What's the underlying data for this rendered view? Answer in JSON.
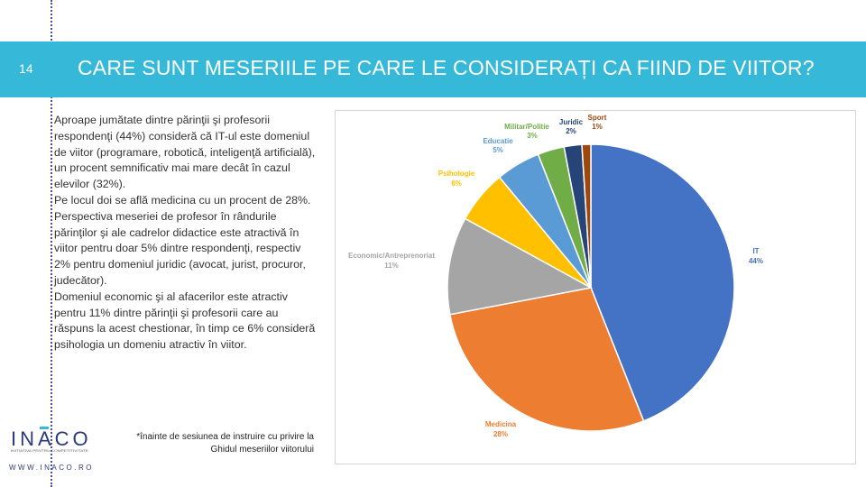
{
  "slide": {
    "number": "14",
    "title": "CARE SUNT MESERIILE PE CARE LE CONSIDERAȚI CA FIIND DE VIITOR?"
  },
  "body": {
    "paragraphs": [
      "Aproape jumătate dintre părinţii şi profesorii respondenţi (44%) consideră că IT-ul este domeniul de viitor (programare, robotică, inteligenţă artificială), un procent semnificativ mai mare decât în cazul elevilor (32%).",
      "Pe locul doi se află medicina cu un procent de 28%.",
      "Perspectiva meseriei de profesor în rândurile părinţilor şi ale cadrelor didactice este atractivă în viitor pentru doar 5% dintre respondenţi, respectiv 2% pentru domeniul juridic (avocat, jurist, procuror, judecător).",
      "Domeniul economic şi al afacerilor este atractiv pentru 11% dintre părinţii şi profesorii care au răspuns la acest chestionar, în timp ce 6% consideră psihologia un domeniu atractiv în viitor."
    ],
    "footnote": "*înainte de sesiunea de instruire cu privire la Ghidul meseriilor viitorului"
  },
  "logo": {
    "name": "INACO",
    "tagline": "INITIATIVA PENTRU COMPETITIVITATE",
    "website": "WWW.INACO.RO"
  },
  "chart_data": {
    "type": "pie",
    "title": "",
    "slices": [
      {
        "label": "IT",
        "value": 44,
        "text": "44%",
        "color": "#4472c4"
      },
      {
        "label": "Medicina",
        "value": 28,
        "text": "28%",
        "color": "#ed7d31"
      },
      {
        "label": "Economic/Antreprenoriat",
        "value": 11,
        "text": "11%",
        "color": "#a5a5a5"
      },
      {
        "label": "Psihologie",
        "value": 6,
        "text": "6%",
        "color": "#ffc000"
      },
      {
        "label": "Educatie",
        "value": 5,
        "text": "5%",
        "color": "#5b9bd5"
      },
      {
        "label": "Militar/Politie",
        "value": 3,
        "text": "3%",
        "color": "#70ad47"
      },
      {
        "label": "Juridic",
        "value": 2,
        "text": "2%",
        "color": "#264478"
      },
      {
        "label": "Sport",
        "value": 1,
        "text": "1%",
        "color": "#9e480e"
      }
    ]
  }
}
